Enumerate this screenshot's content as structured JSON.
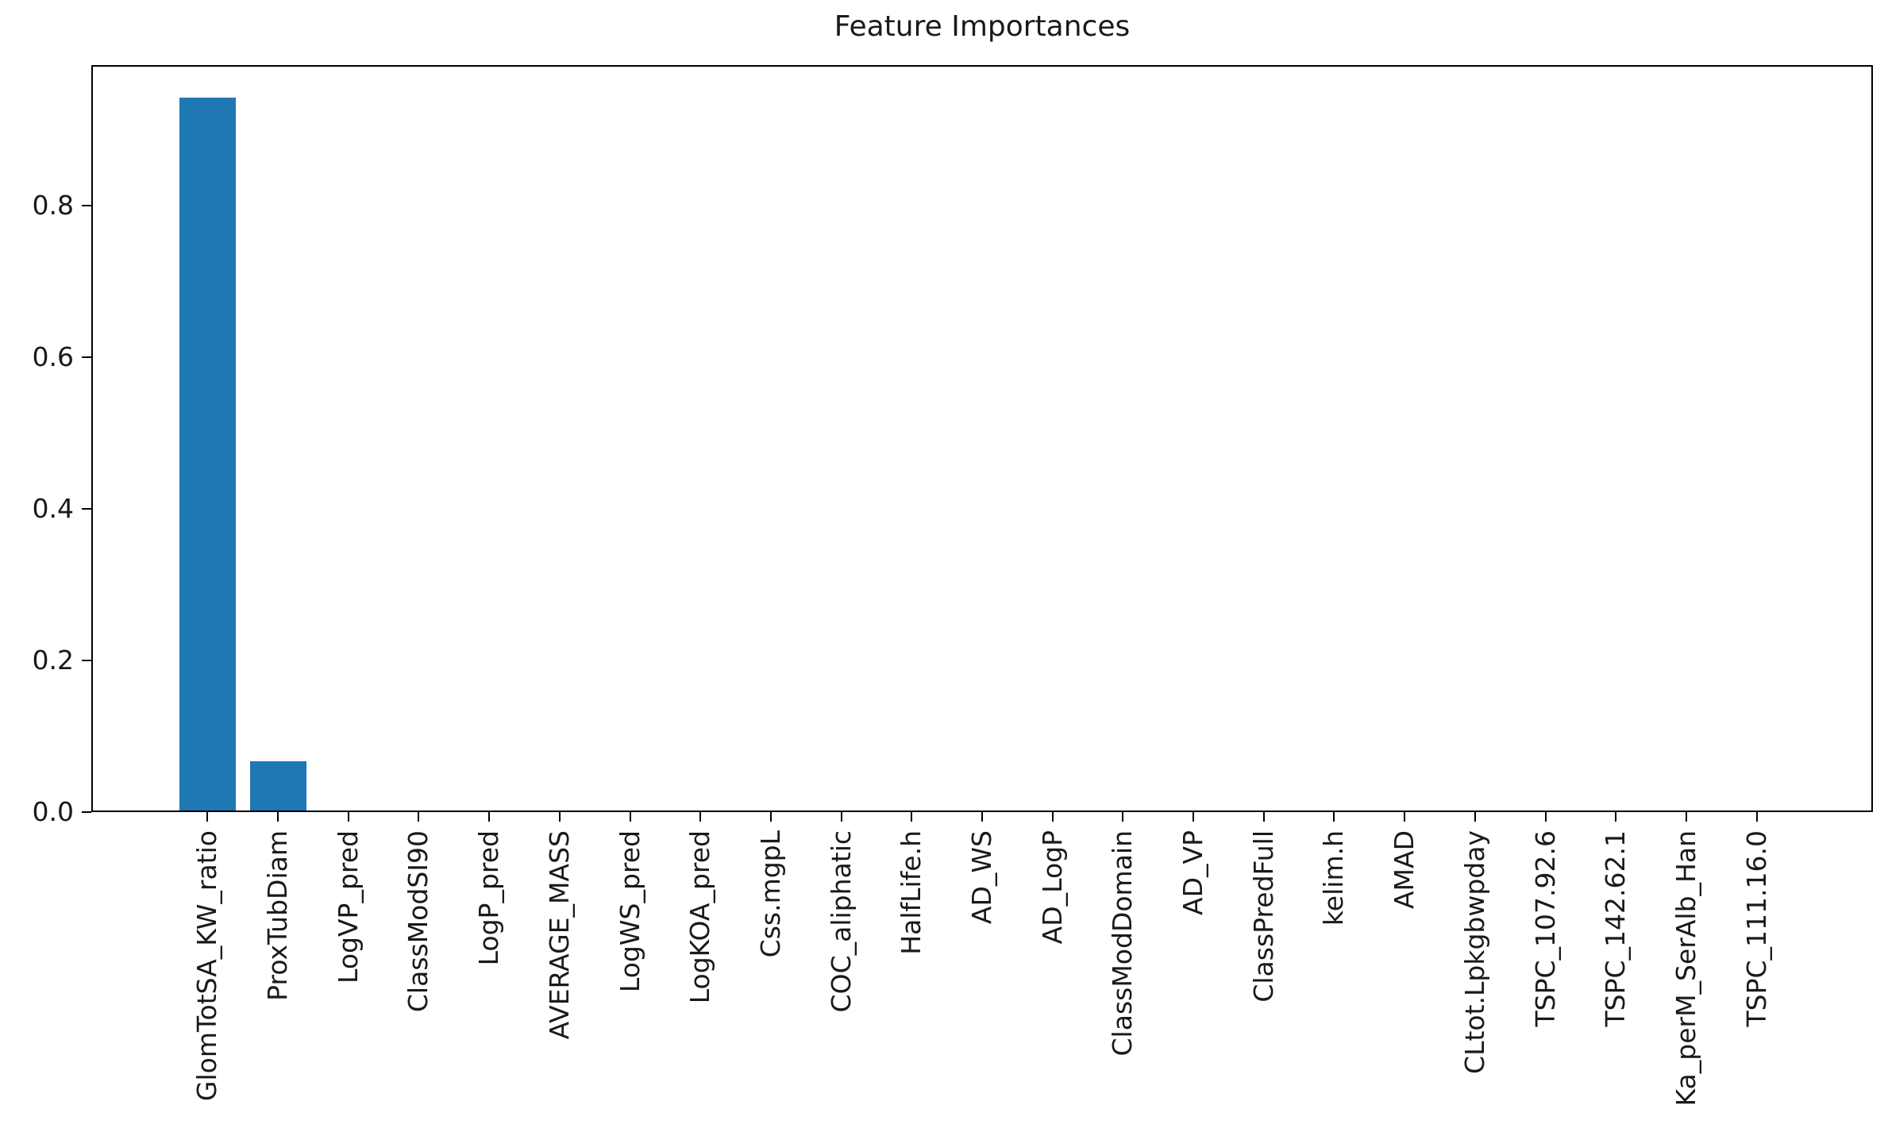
{
  "chart_data": {
    "type": "bar",
    "title": "Feature Importances",
    "xlabel": "",
    "ylabel": "",
    "categories": [
      "GlomTotSA_KW_ratio",
      "ProxTubDiam",
      "LogVP_pred",
      "ClassModSI90",
      "LogP_pred",
      "AVERAGE_MASS",
      "LogWS_pred",
      "LogKOA_pred",
      "Css.mgpL",
      "COC_aliphatic",
      "HalfLife.h",
      "AD_WS",
      "AD_LogP",
      "ClassModDomain",
      "AD_VP",
      "ClassPredFull",
      "kelim.h",
      "AMAD",
      "CLtot.Lpkgbwpday",
      "TSPC_107.92.6",
      "TSPC_142.62.1",
      "Ka_perM_SerAlb_Han",
      "TSPC_111.16.0"
    ],
    "values": [
      0.94,
      0.065,
      0,
      0,
      0,
      0,
      0,
      0,
      0,
      0,
      0,
      0,
      0,
      0,
      0,
      0,
      0,
      0,
      0,
      0,
      0,
      0,
      0
    ],
    "bar_color": "#1f77b4",
    "axis_color": "#000000",
    "text_color": "#1a1a1a",
    "ylim": [
      0,
      0.985
    ],
    "yticks": [
      0.0,
      0.2,
      0.4,
      0.6,
      0.8
    ],
    "ytick_labels": [
      "0.0",
      "0.2",
      "0.4",
      "0.6",
      "0.8"
    ],
    "xtick_rotation": 90,
    "grid": false,
    "legend_position": "none",
    "background": "#ffffff"
  }
}
